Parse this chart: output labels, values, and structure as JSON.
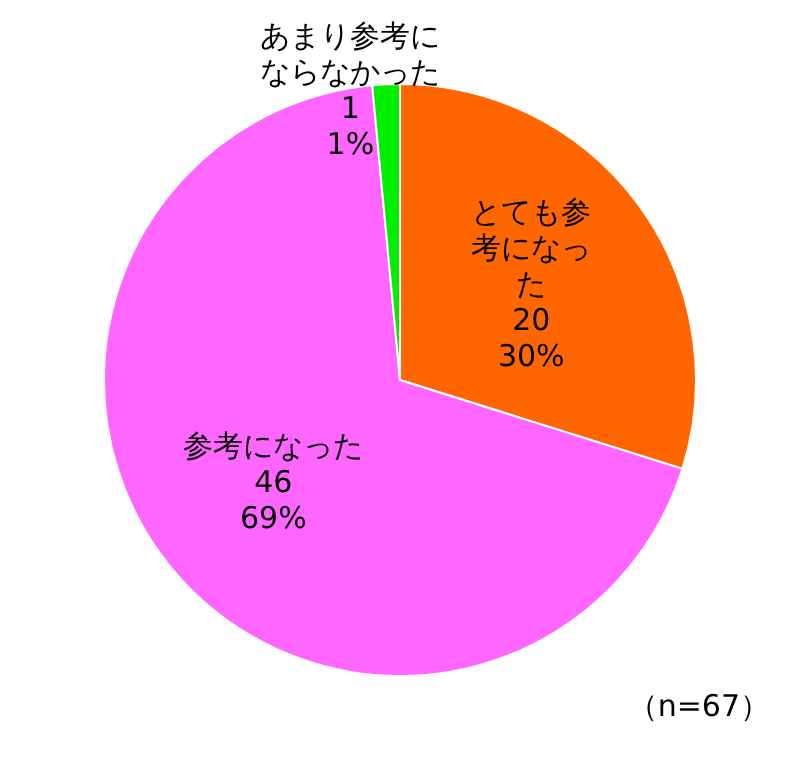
{
  "chart_data": {
    "type": "pie",
    "categories": [
      "とても参考になった",
      "参考になった",
      "あまり参考にならなかった"
    ],
    "values": [
      20,
      46,
      1
    ],
    "colors": [
      "#ff6600",
      "#ff66ff",
      "#00ee00"
    ],
    "value_labels": [
      "20\n30%",
      "46\n69%",
      "1\n1%"
    ],
    "annotations": [
      "（n=67）"
    ]
  }
}
